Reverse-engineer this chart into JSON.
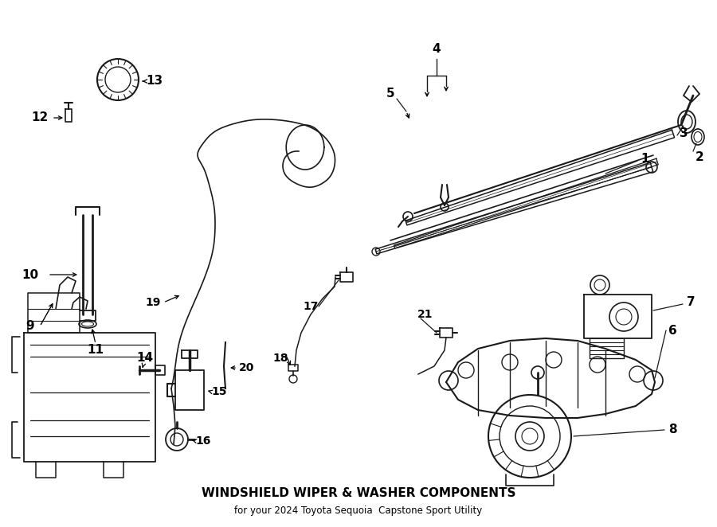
{
  "title": "WINDSHIELD WIPER & WASHER COMPONENTS",
  "subtitle": "for your 2024 Toyota Sequoia  Capstone Sport Utility",
  "bg_color": "#ffffff",
  "line_color": "#1a1a1a",
  "fig_width": 9.0,
  "fig_height": 6.62,
  "dpi": 100
}
